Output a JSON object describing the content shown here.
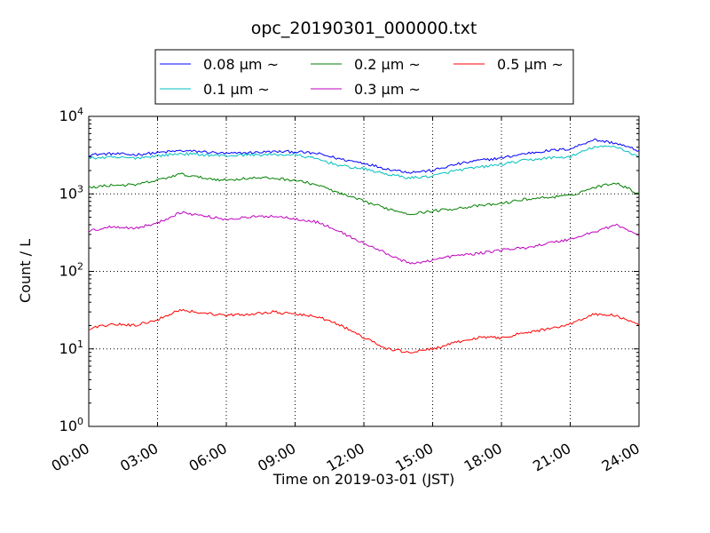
{
  "chart_data": {
    "type": "line",
    "title": "opc_20190301_000000.txt",
    "xlabel": "Time on 2019-03-01 (JST)",
    "ylabel": "Count / L",
    "x_ticks": [
      "00:00",
      "03:00",
      "06:00",
      "09:00",
      "12:00",
      "15:00",
      "18:00",
      "21:00",
      "24:00"
    ],
    "x_tick_hours": [
      0,
      3,
      6,
      9,
      12,
      15,
      18,
      21,
      24
    ],
    "y_tick_base": "10",
    "y_tick_exponents": [
      "0",
      "1",
      "2",
      "3",
      "4"
    ],
    "xlim": [
      0,
      24
    ],
    "ylim": [
      1,
      10000
    ],
    "y_scale": "log",
    "grid": true,
    "legend_position": "top-center",
    "series": [
      {
        "name": "0.08 μm ~",
        "color": "#0000ff",
        "x": [
          0,
          1,
          2,
          3,
          4,
          5,
          6,
          7,
          8,
          9,
          10,
          11,
          12,
          13,
          14,
          15,
          16,
          17,
          18,
          19,
          20,
          21,
          22,
          23,
          24
        ],
        "values": [
          3200,
          3300,
          3200,
          3400,
          3600,
          3500,
          3300,
          3400,
          3500,
          3500,
          3300,
          2800,
          2500,
          2100,
          1900,
          2000,
          2400,
          2700,
          2900,
          3300,
          3600,
          3800,
          5000,
          4500,
          3600
        ]
      },
      {
        "name": "0.1 μm ~",
        "color": "#00bfbf",
        "x": [
          0,
          1,
          2,
          3,
          4,
          5,
          6,
          7,
          8,
          9,
          10,
          11,
          12,
          13,
          14,
          15,
          16,
          17,
          18,
          19,
          20,
          21,
          22,
          23,
          24
        ],
        "values": [
          2900,
          2950,
          2900,
          3100,
          3300,
          3200,
          3100,
          3200,
          3200,
          3200,
          2800,
          2300,
          2100,
          1800,
          1600,
          1700,
          2000,
          2200,
          2400,
          2700,
          2900,
          3000,
          4000,
          4100,
          3000
        ]
      },
      {
        "name": "0.2 μm ~",
        "color": "#008000",
        "x": [
          0,
          1,
          2,
          3,
          4,
          5,
          6,
          7,
          8,
          9,
          10,
          11,
          12,
          13,
          14,
          15,
          16,
          17,
          18,
          19,
          20,
          21,
          22,
          23,
          24
        ],
        "values": [
          1200,
          1300,
          1300,
          1500,
          1800,
          1600,
          1500,
          1600,
          1600,
          1500,
          1300,
          1000,
          800,
          650,
          550,
          600,
          650,
          700,
          750,
          850,
          900,
          950,
          1200,
          1400,
          1000
        ]
      },
      {
        "name": "0.3 μm ~",
        "color": "#bf00bf",
        "x": [
          0,
          1,
          2,
          3,
          4,
          5,
          6,
          7,
          8,
          9,
          10,
          11,
          12,
          13,
          14,
          15,
          16,
          17,
          18,
          19,
          20,
          21,
          22,
          23,
          24
        ],
        "values": [
          330,
          380,
          360,
          420,
          580,
          520,
          470,
          500,
          520,
          480,
          430,
          320,
          230,
          170,
          125,
          140,
          160,
          170,
          190,
          200,
          230,
          260,
          320,
          400,
          290
        ]
      },
      {
        "name": "0.5 μm ~",
        "color": "#ff0000",
        "x": [
          0,
          1,
          2,
          3,
          4,
          5,
          6,
          7,
          8,
          9,
          10,
          11,
          12,
          13,
          14,
          15,
          16,
          17,
          18,
          19,
          20,
          21,
          22,
          23,
          24
        ],
        "values": [
          18,
          21,
          20,
          24,
          32,
          29,
          27,
          28,
          30,
          28,
          26,
          20,
          14,
          10,
          9,
          10,
          12,
          14,
          14,
          16,
          18,
          21,
          28,
          27,
          20
        ]
      }
    ]
  }
}
